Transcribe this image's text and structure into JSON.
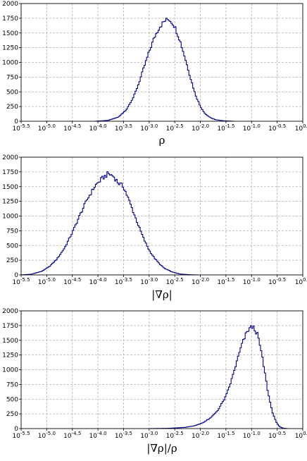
{
  "chart_data": [
    {
      "type": "histogram",
      "xlabel": "ρ",
      "xscale": "log",
      "xlim_log10": [
        -5.5,
        0.0
      ],
      "ylim": [
        0,
        2000
      ],
      "xtick_exponents": [
        "-5.5",
        "-5.0",
        "-4.5",
        "-4.0",
        "-3.5",
        "-3.0",
        "-2.5",
        "-2.0",
        "-1.5",
        "-1.0",
        "-0.5",
        "0.0"
      ],
      "yticks": [
        0,
        250,
        500,
        750,
        1000,
        1250,
        1500,
        1750,
        2000
      ],
      "grid": true,
      "color": "#00008b",
      "bin_width_log10": 0.025,
      "series": [
        {
          "points_log10x_count": [
            [
              -4.05,
              0
            ],
            [
              -3.8,
              15
            ],
            [
              -3.6,
              70
            ],
            [
              -3.45,
              190
            ],
            [
              -3.3,
              420
            ],
            [
              -3.2,
              650
            ],
            [
              -3.1,
              920
            ],
            [
              -3.0,
              1180
            ],
            [
              -2.9,
              1420
            ],
            [
              -2.8,
              1600
            ],
            [
              -2.7,
              1700
            ],
            [
              -2.62,
              1740
            ],
            [
              -2.55,
              1680
            ],
            [
              -2.5,
              1610
            ],
            [
              -2.4,
              1380
            ],
            [
              -2.3,
              1080
            ],
            [
              -2.2,
              760
            ],
            [
              -2.1,
              460
            ],
            [
              -2.0,
              250
            ],
            [
              -1.9,
              120
            ],
            [
              -1.8,
              60
            ],
            [
              -1.7,
              25
            ],
            [
              -1.55,
              8
            ],
            [
              -1.35,
              0
            ]
          ]
        }
      ]
    },
    {
      "type": "histogram",
      "xlabel": "|∇ρ|",
      "xscale": "log",
      "xlim_log10": [
        -5.5,
        0.0
      ],
      "ylim": [
        0,
        2000
      ],
      "xtick_exponents": [
        "-5.5",
        "-5.0",
        "-4.5",
        "-4.0",
        "-3.5",
        "-3.0",
        "-2.5",
        "-2.0",
        "-1.5",
        "-1.0",
        "-0.5",
        "0.0"
      ],
      "yticks": [
        0,
        250,
        500,
        750,
        1000,
        1250,
        1500,
        1750,
        2000
      ],
      "grid": true,
      "color": "#00008b",
      "bin_width_log10": 0.025,
      "series": [
        {
          "points_log10x_count": [
            [
              -5.5,
              0
            ],
            [
              -5.3,
              12
            ],
            [
              -5.1,
              60
            ],
            [
              -4.95,
              140
            ],
            [
              -4.8,
              270
            ],
            [
              -4.65,
              460
            ],
            [
              -4.5,
              720
            ],
            [
              -4.35,
              1020
            ],
            [
              -4.2,
              1300
            ],
            [
              -4.05,
              1520
            ],
            [
              -3.9,
              1650
            ],
            [
              -3.8,
              1720
            ],
            [
              -3.7,
              1680
            ],
            [
              -3.6,
              1560
            ],
            [
              -3.5,
              1500
            ],
            [
              -3.4,
              1280
            ],
            [
              -3.3,
              1050
            ],
            [
              -3.2,
              820
            ],
            [
              -3.1,
              600
            ],
            [
              -3.0,
              420
            ],
            [
              -2.9,
              290
            ],
            [
              -2.8,
              190
            ],
            [
              -2.7,
              110
            ],
            [
              -2.55,
              50
            ],
            [
              -2.4,
              15
            ],
            [
              -2.2,
              3
            ],
            [
              -2.05,
              0
            ]
          ]
        }
      ]
    },
    {
      "type": "histogram",
      "xlabel": "|∇ρ|/ρ",
      "xscale": "log",
      "xlim_log10": [
        -5.5,
        0.0
      ],
      "ylim": [
        0,
        2000
      ],
      "xtick_exponents": [
        "-5.5",
        "-5.0",
        "-4.5",
        "-4.0",
        "-3.5",
        "-3.0",
        "-2.5",
        "-2.0",
        "-1.5",
        "-1.0",
        "-0.5",
        "0.0"
      ],
      "yticks": [
        0,
        250,
        500,
        750,
        1000,
        1250,
        1500,
        1750,
        2000
      ],
      "grid": true,
      "color": "#00008b",
      "bin_width_log10": 0.025,
      "series": [
        {
          "points_log10x_count": [
            [
              -3.0,
              0
            ],
            [
              -2.6,
              5
            ],
            [
              -2.3,
              20
            ],
            [
              -2.1,
              50
            ],
            [
              -1.95,
              100
            ],
            [
              -1.8,
              180
            ],
            [
              -1.65,
              320
            ],
            [
              -1.5,
              550
            ],
            [
              -1.4,
              800
            ],
            [
              -1.3,
              1100
            ],
            [
              -1.2,
              1400
            ],
            [
              -1.12,
              1580
            ],
            [
              -1.05,
              1700
            ],
            [
              -0.98,
              1730
            ],
            [
              -0.93,
              1680
            ],
            [
              -0.88,
              1580
            ],
            [
              -0.82,
              1350
            ],
            [
              -0.75,
              1000
            ],
            [
              -0.68,
              620
            ],
            [
              -0.6,
              300
            ],
            [
              -0.52,
              110
            ],
            [
              -0.45,
              30
            ],
            [
              -0.38,
              5
            ],
            [
              -0.3,
              0
            ]
          ]
        }
      ]
    }
  ]
}
